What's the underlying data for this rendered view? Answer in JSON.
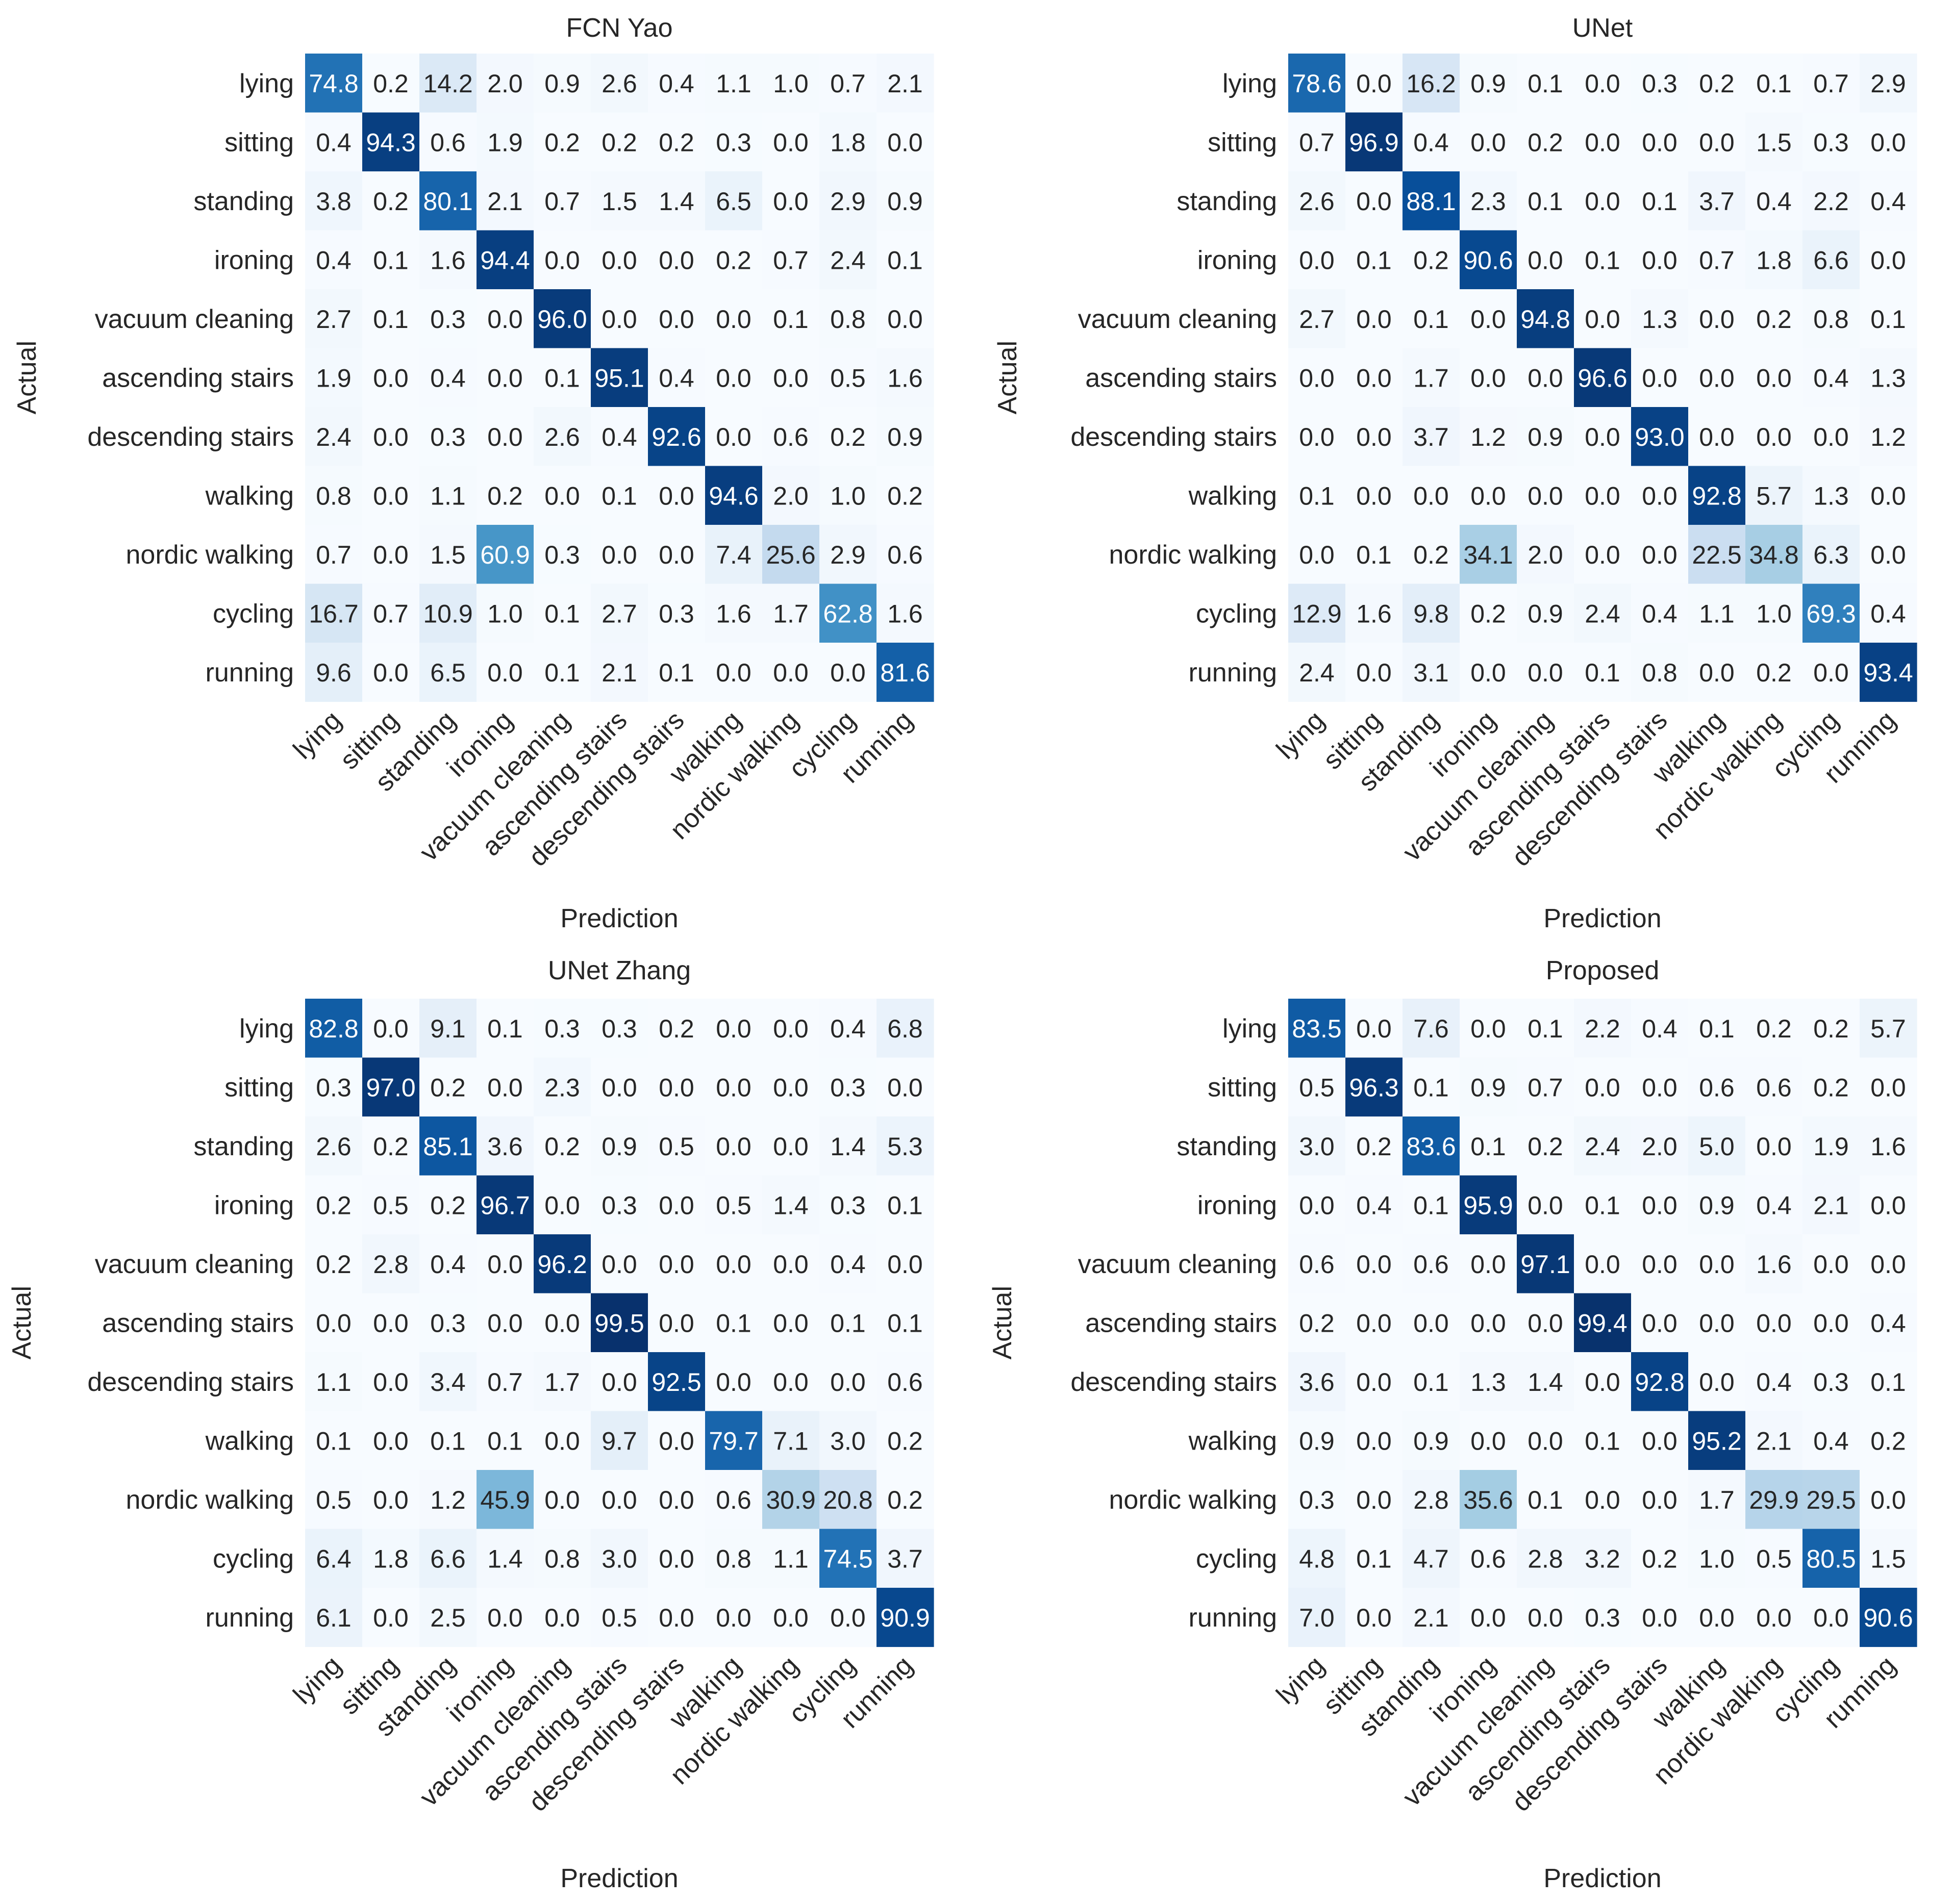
{
  "chart_data": [
    {
      "type": "heatmap",
      "title": "FCN Yao",
      "xlabel": "Prediction",
      "ylabel": "Actual",
      "categories": [
        "lying",
        "sitting",
        "standing",
        "ironing",
        "vacuum cleaning",
        "ascending stairs",
        "descending stairs",
        "walking",
        "nordic walking",
        "cycling",
        "running"
      ],
      "values": [
        [
          74.8,
          0.2,
          14.2,
          2.0,
          0.9,
          2.6,
          0.4,
          1.1,
          1.0,
          0.7,
          2.1
        ],
        [
          0.4,
          94.3,
          0.6,
          1.9,
          0.2,
          0.2,
          0.2,
          0.3,
          0.0,
          1.8,
          0.0
        ],
        [
          3.8,
          0.2,
          80.1,
          2.1,
          0.7,
          1.5,
          1.4,
          6.5,
          0.0,
          2.9,
          0.9
        ],
        [
          0.4,
          0.1,
          1.6,
          94.4,
          0.0,
          0.0,
          0.0,
          0.2,
          0.7,
          2.4,
          0.1
        ],
        [
          2.7,
          0.1,
          0.3,
          0.0,
          96.0,
          0.0,
          0.0,
          0.0,
          0.1,
          0.8,
          0.0
        ],
        [
          1.9,
          0.0,
          0.4,
          0.0,
          0.1,
          95.1,
          0.4,
          0.0,
          0.0,
          0.5,
          1.6
        ],
        [
          2.4,
          0.0,
          0.3,
          0.0,
          2.6,
          0.4,
          92.6,
          0.0,
          0.6,
          0.2,
          0.9
        ],
        [
          0.8,
          0.0,
          1.1,
          0.2,
          0.0,
          0.1,
          0.0,
          94.6,
          2.0,
          1.0,
          0.2
        ],
        [
          0.7,
          0.0,
          1.5,
          60.9,
          0.3,
          0.0,
          0.0,
          7.4,
          25.6,
          2.9,
          0.6
        ],
        [
          16.7,
          0.7,
          10.9,
          1.0,
          0.1,
          2.7,
          0.3,
          1.6,
          1.7,
          62.8,
          1.6
        ],
        [
          9.6,
          0.0,
          6.5,
          0.0,
          0.1,
          2.1,
          0.1,
          0.0,
          0.0,
          0.0,
          81.6
        ]
      ],
      "value_range": [
        0,
        100
      ]
    },
    {
      "type": "heatmap",
      "title": "UNet",
      "xlabel": "Prediction",
      "ylabel": "Actual",
      "categories": [
        "lying",
        "sitting",
        "standing",
        "ironing",
        "vacuum cleaning",
        "ascending stairs",
        "descending stairs",
        "walking",
        "nordic walking",
        "cycling",
        "running"
      ],
      "values": [
        [
          78.6,
          0.0,
          16.2,
          0.9,
          0.1,
          0.0,
          0.3,
          0.2,
          0.1,
          0.7,
          2.9
        ],
        [
          0.7,
          96.9,
          0.4,
          0.0,
          0.2,
          0.0,
          0.0,
          0.0,
          1.5,
          0.3,
          0.0
        ],
        [
          2.6,
          0.0,
          88.1,
          2.3,
          0.1,
          0.0,
          0.1,
          3.7,
          0.4,
          2.2,
          0.4
        ],
        [
          0.0,
          0.1,
          0.2,
          90.6,
          0.0,
          0.1,
          0.0,
          0.7,
          1.8,
          6.6,
          0.0
        ],
        [
          2.7,
          0.0,
          0.1,
          0.0,
          94.8,
          0.0,
          1.3,
          0.0,
          0.2,
          0.8,
          0.1
        ],
        [
          0.0,
          0.0,
          1.7,
          0.0,
          0.0,
          96.6,
          0.0,
          0.0,
          0.0,
          0.4,
          1.3
        ],
        [
          0.0,
          0.0,
          3.7,
          1.2,
          0.9,
          0.0,
          93.0,
          0.0,
          0.0,
          0.0,
          1.2
        ],
        [
          0.1,
          0.0,
          0.0,
          0.0,
          0.0,
          0.0,
          0.0,
          92.8,
          5.7,
          1.3,
          0.0
        ],
        [
          0.0,
          0.1,
          0.2,
          34.1,
          2.0,
          0.0,
          0.0,
          22.5,
          34.8,
          6.3,
          0.0
        ],
        [
          12.9,
          1.6,
          9.8,
          0.2,
          0.9,
          2.4,
          0.4,
          1.1,
          1.0,
          69.3,
          0.4
        ],
        [
          2.4,
          0.0,
          3.1,
          0.0,
          0.0,
          0.1,
          0.8,
          0.0,
          0.2,
          0.0,
          93.4
        ]
      ],
      "value_range": [
        0,
        100
      ]
    },
    {
      "type": "heatmap",
      "title": "UNet Zhang",
      "xlabel": "Prediction",
      "ylabel": "Actual",
      "categories": [
        "lying",
        "sitting",
        "standing",
        "ironing",
        "vacuum cleaning",
        "ascending stairs",
        "descending stairs",
        "walking",
        "nordic walking",
        "cycling",
        "running"
      ],
      "values": [
        [
          82.8,
          0.0,
          9.1,
          0.1,
          0.3,
          0.3,
          0.2,
          0.0,
          0.0,
          0.4,
          6.8
        ],
        [
          0.3,
          97.0,
          0.2,
          0.0,
          2.3,
          0.0,
          0.0,
          0.0,
          0.0,
          0.3,
          0.0
        ],
        [
          2.6,
          0.2,
          85.1,
          3.6,
          0.2,
          0.9,
          0.5,
          0.0,
          0.0,
          1.4,
          5.3
        ],
        [
          0.2,
          0.5,
          0.2,
          96.7,
          0.0,
          0.3,
          0.0,
          0.5,
          1.4,
          0.3,
          0.1
        ],
        [
          0.2,
          2.8,
          0.4,
          0.0,
          96.2,
          0.0,
          0.0,
          0.0,
          0.0,
          0.4,
          0.0
        ],
        [
          0.0,
          0.0,
          0.3,
          0.0,
          0.0,
          99.5,
          0.0,
          0.1,
          0.0,
          0.1,
          0.1
        ],
        [
          1.1,
          0.0,
          3.4,
          0.7,
          1.7,
          0.0,
          92.5,
          0.0,
          0.0,
          0.0,
          0.6
        ],
        [
          0.1,
          0.0,
          0.1,
          0.1,
          0.0,
          9.7,
          0.0,
          79.7,
          7.1,
          3.0,
          0.2
        ],
        [
          0.5,
          0.0,
          1.2,
          45.9,
          0.0,
          0.0,
          0.0,
          0.6,
          30.9,
          20.8,
          0.2
        ],
        [
          6.4,
          1.8,
          6.6,
          1.4,
          0.8,
          3.0,
          0.0,
          0.8,
          1.1,
          74.5,
          3.7
        ],
        [
          6.1,
          0.0,
          2.5,
          0.0,
          0.0,
          0.5,
          0.0,
          0.0,
          0.0,
          0.0,
          90.9
        ]
      ],
      "value_range": [
        0,
        100
      ]
    },
    {
      "type": "heatmap",
      "title": "Proposed",
      "xlabel": "Prediction",
      "ylabel": "Actual",
      "categories": [
        "lying",
        "sitting",
        "standing",
        "ironing",
        "vacuum cleaning",
        "ascending stairs",
        "descending stairs",
        "walking",
        "nordic walking",
        "cycling",
        "running"
      ],
      "values": [
        [
          83.5,
          0.0,
          7.6,
          0.0,
          0.1,
          2.2,
          0.4,
          0.1,
          0.2,
          0.2,
          5.7
        ],
        [
          0.5,
          96.3,
          0.1,
          0.9,
          0.7,
          0.0,
          0.0,
          0.6,
          0.6,
          0.2,
          0.0
        ],
        [
          3.0,
          0.2,
          83.6,
          0.1,
          0.2,
          2.4,
          2.0,
          5.0,
          0.0,
          1.9,
          1.6
        ],
        [
          0.0,
          0.4,
          0.1,
          95.9,
          0.0,
          0.1,
          0.0,
          0.9,
          0.4,
          2.1,
          0.0
        ],
        [
          0.6,
          0.0,
          0.6,
          0.0,
          97.1,
          0.0,
          0.0,
          0.0,
          1.6,
          0.0,
          0.0
        ],
        [
          0.2,
          0.0,
          0.0,
          0.0,
          0.0,
          99.4,
          0.0,
          0.0,
          0.0,
          0.0,
          0.4
        ],
        [
          3.6,
          0.0,
          0.1,
          1.3,
          1.4,
          0.0,
          92.8,
          0.0,
          0.4,
          0.3,
          0.1
        ],
        [
          0.9,
          0.0,
          0.9,
          0.0,
          0.0,
          0.1,
          0.0,
          95.2,
          2.1,
          0.4,
          0.2
        ],
        [
          0.3,
          0.0,
          2.8,
          35.6,
          0.1,
          0.0,
          0.0,
          1.7,
          29.9,
          29.5,
          0.0
        ],
        [
          4.8,
          0.1,
          4.7,
          0.6,
          2.8,
          3.2,
          0.2,
          1.0,
          0.5,
          80.5,
          1.5
        ],
        [
          7.0,
          0.0,
          2.1,
          0.0,
          0.0,
          0.3,
          0.0,
          0.0,
          0.0,
          0.0,
          90.6
        ]
      ],
      "value_range": [
        0,
        100
      ]
    }
  ],
  "colors": {
    "colormap": "Blues",
    "text_dark": "#262626",
    "text_light": "#ffffff"
  }
}
